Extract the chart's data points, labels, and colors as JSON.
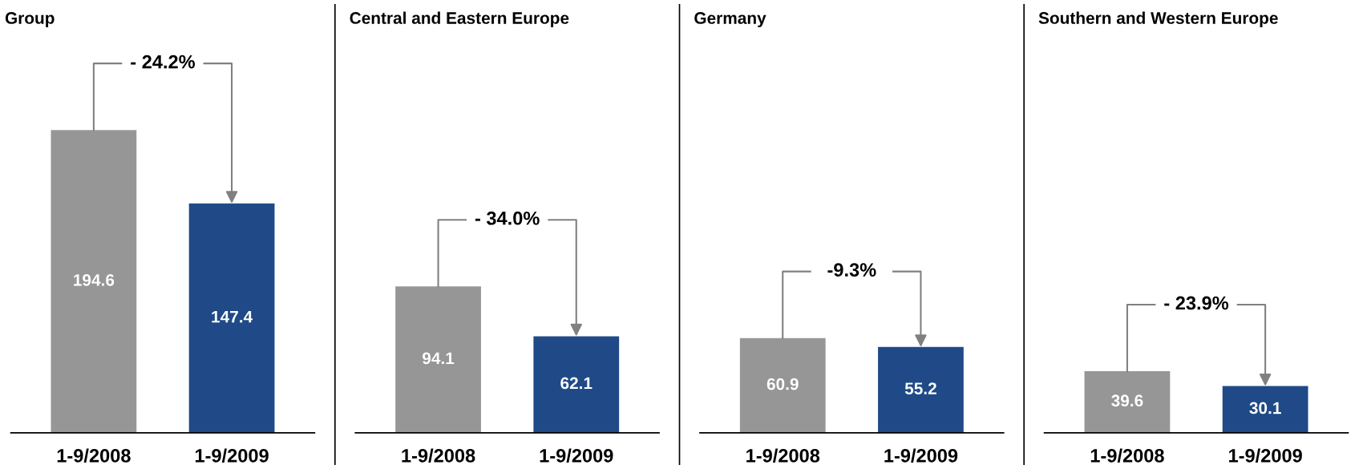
{
  "chart_data": [
    {
      "type": "bar",
      "title": "Group",
      "categories": [
        "1-9/2008",
        "1-9/2009"
      ],
      "values": [
        194.6,
        147.4
      ],
      "colors": [
        "#969696",
        "#1f4a87"
      ],
      "data_labels": true,
      "annotations": [
        "- 24.2%"
      ]
    },
    {
      "type": "bar",
      "title": "Central and Eastern Europe",
      "categories": [
        "1-9/2008",
        "1-9/2009"
      ],
      "values": [
        94.1,
        62.1
      ],
      "colors": [
        "#969696",
        "#1f4a87"
      ],
      "data_labels": true,
      "annotations": [
        "- 34.0%"
      ]
    },
    {
      "type": "bar",
      "title": "Germany",
      "categories": [
        "1-9/2008",
        "1-9/2009"
      ],
      "values": [
        60.9,
        55.2
      ],
      "colors": [
        "#969696",
        "#1f4a87"
      ],
      "data_labels": true,
      "annotations": [
        "-9.3%"
      ]
    },
    {
      "type": "bar",
      "title": "Southern and Western Europe",
      "categories": [
        "1-9/2008",
        "1-9/2009"
      ],
      "values": [
        39.6,
        30.1
      ],
      "colors": [
        "#969696",
        "#1f4a87"
      ],
      "data_labels": true,
      "annotations": [
        "- 23.9%"
      ]
    }
  ]
}
